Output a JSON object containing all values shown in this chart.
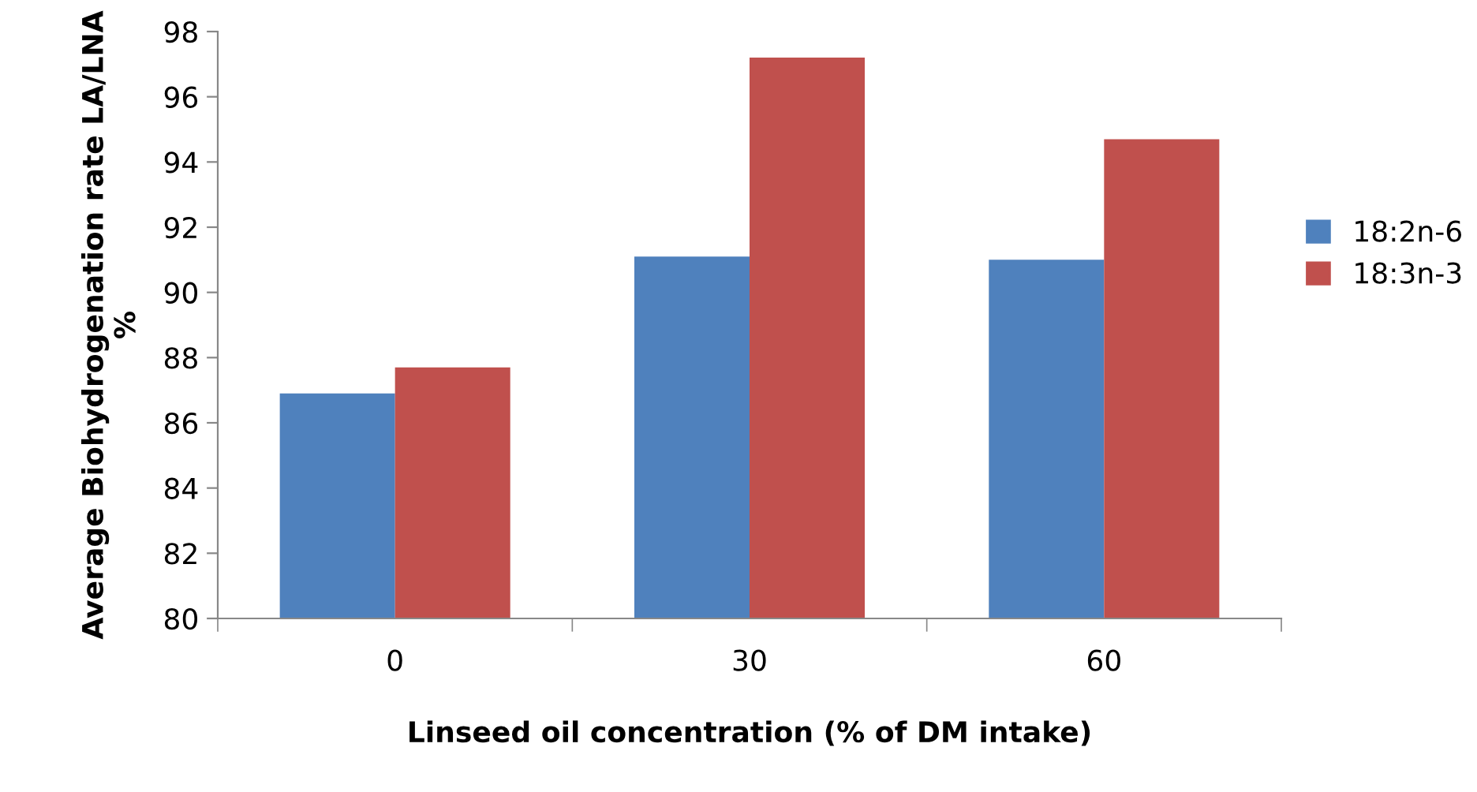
{
  "chart_data": {
    "type": "bar",
    "xlabel": "Linseed oil concentration (% of DM intake)",
    "ylabel": "Average Biohydrogenation rate LA/LNA\n%",
    "categories": [
      "0",
      "30",
      "60"
    ],
    "series": [
      {
        "name": "18:2n-6",
        "color": "#4f81bd",
        "values": [
          86.9,
          91.1,
          91.0
        ]
      },
      {
        "name": "18:3n-3",
        "color": "#c0504d",
        "values": [
          87.7,
          97.2,
          94.7
        ]
      }
    ],
    "ylim": [
      80,
      98
    ],
    "yticks": [
      80,
      82,
      84,
      86,
      88,
      90,
      92,
      94,
      96,
      98
    ],
    "grid": false,
    "legend": "right"
  }
}
